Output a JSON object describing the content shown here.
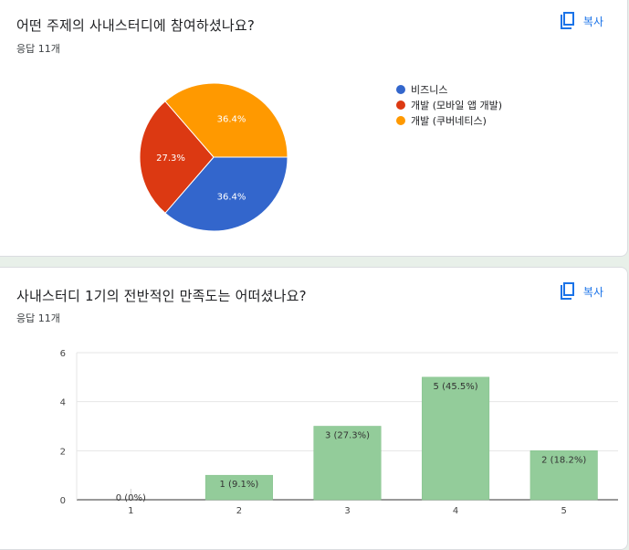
{
  "questions": [
    {
      "title": "어떤 주제의 사내스터디에 참여하셨나요?",
      "responses": "응답 11개",
      "copy_label": "복사"
    },
    {
      "title": "사내스터디 1기의 전반적인 만족도는 어떠셨나요?",
      "responses": "응답 11개",
      "copy_label": "복사"
    }
  ],
  "colors": {
    "accent": "#1a73e8",
    "pie": [
      "#3366cc",
      "#dc3912",
      "#ff9900"
    ],
    "bar": "#93cc9a",
    "bar_stroke": "#7fbf87"
  },
  "chart_data": [
    {
      "type": "pie",
      "title": "",
      "categories": [
        "비즈니스",
        "개발 (모바일 앱 개발)",
        "개발 (쿠버네티스)"
      ],
      "values": [
        36.4,
        27.3,
        36.4
      ],
      "labels": [
        "36.4%",
        "27.3%",
        "36.4%"
      ],
      "legend": "right"
    },
    {
      "type": "bar",
      "title": "",
      "categories": [
        "1",
        "2",
        "3",
        "4",
        "5"
      ],
      "values": [
        0,
        1,
        3,
        5,
        2
      ],
      "data_labels": [
        "0 (0%)",
        "1 (9.1%)",
        "3 (27.3%)",
        "5 (45.5%)",
        "2 (18.2%)"
      ],
      "xlabel": "",
      "ylabel": "",
      "ylim": [
        0,
        6
      ],
      "yticks": [
        0,
        2,
        4,
        6
      ],
      "grid": true
    }
  ]
}
